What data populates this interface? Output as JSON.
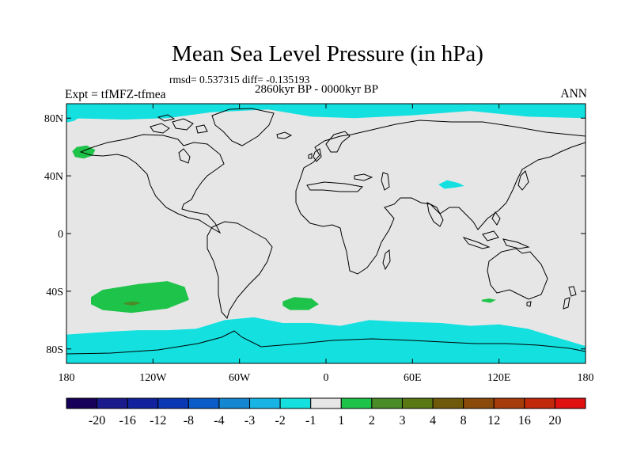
{
  "chart_data": {
    "type": "heatmap",
    "title": "Mean Sea Level Pressure (in hPa)",
    "stats": "rmsd= 0.537315 diff= -0.135193",
    "period": "2860kyr BP - 0000kyr BP",
    "experiment": "Expt = tfMFZ-tfmea",
    "season": "ANN",
    "x_ticks": [
      "180",
      "120W",
      "60W",
      "0",
      "60E",
      "120E",
      "180"
    ],
    "y_ticks": [
      "80N",
      "40N",
      "0",
      "40S",
      "80S"
    ],
    "xlim": [
      -180,
      180
    ],
    "ylim": [
      -90,
      90
    ],
    "colorbar": {
      "colors": [
        "#16005a",
        "#1a1a8c",
        "#10229e",
        "#0a38b4",
        "#0a5cc8",
        "#1487d2",
        "#18b4e6",
        "#14e0e0",
        "#e6e6e6",
        "#1ec34a",
        "#4a8c28",
        "#5a7814",
        "#6e5a0a",
        "#8a4a0a",
        "#a63c0a",
        "#c2280a",
        "#e01010"
      ],
      "labels": [
        "-20",
        "-16",
        "-12",
        "-8",
        "-4",
        "-3",
        "-2",
        "-1",
        "1",
        "2",
        "3",
        "4",
        "8",
        "12",
        "16",
        "20"
      ]
    },
    "regions": [
      {
        "name": "arctic-negative",
        "level": "-2 to -1",
        "color": "#14e0e0",
        "points": [
          [
            -180,
            90
          ],
          [
            180,
            90
          ],
          [
            180,
            80
          ],
          [
            140,
            81
          ],
          [
            100,
            85
          ],
          [
            60,
            82
          ],
          [
            20,
            80
          ],
          [
            -10,
            81
          ],
          [
            -40,
            86
          ],
          [
            -80,
            84
          ],
          [
            -110,
            80
          ],
          [
            -140,
            79
          ],
          [
            -180,
            80
          ]
        ]
      },
      {
        "name": "arctic-negative-tail",
        "level": "-2 to -1",
        "color": "#14e0e0",
        "points": [
          [
            -170,
            81
          ],
          [
            -175,
            78
          ],
          [
            -180,
            77
          ],
          [
            -180,
            81
          ]
        ]
      },
      {
        "name": "antarctic-negative",
        "level": "-2 to -1",
        "color": "#14e0e0",
        "points": [
          [
            -180,
            -90
          ],
          [
            180,
            -90
          ],
          [
            180,
            -78
          ],
          [
            160,
            -72
          ],
          [
            140,
            -66
          ],
          [
            120,
            -63
          ],
          [
            100,
            -64
          ],
          [
            80,
            -62
          ],
          [
            50,
            -61
          ],
          [
            30,
            -60
          ],
          [
            10,
            -64
          ],
          [
            -10,
            -62
          ],
          [
            -30,
            -62
          ],
          [
            -50,
            -58
          ],
          [
            -70,
            -60
          ],
          [
            -90,
            -66
          ],
          [
            -110,
            -67
          ],
          [
            -130,
            -67
          ],
          [
            -150,
            -68
          ],
          [
            -180,
            -70
          ]
        ]
      },
      {
        "name": "north-pacific-positive",
        "level": "1 to 2",
        "color": "#1ec34a",
        "points": [
          [
            -176,
            57
          ],
          [
            -173,
            60
          ],
          [
            -166,
            61
          ],
          [
            -160,
            58
          ],
          [
            -162,
            54
          ],
          [
            -168,
            52
          ],
          [
            -174,
            53
          ]
        ]
      },
      {
        "name": "south-pacific-positive",
        "level": "1 to 2",
        "color": "#1ec34a",
        "points": [
          [
            -163,
            -44
          ],
          [
            -155,
            -39
          ],
          [
            -130,
            -35
          ],
          [
            -110,
            -33
          ],
          [
            -98,
            -37
          ],
          [
            -95,
            -46
          ],
          [
            -110,
            -52
          ],
          [
            -135,
            -55
          ],
          [
            -155,
            -53
          ],
          [
            -163,
            -49
          ]
        ]
      },
      {
        "name": "south-pacific-core",
        "level": "2 to 3",
        "color": "#4a8c28",
        "points": [
          [
            -140,
            -48
          ],
          [
            -134,
            -47
          ],
          [
            -128,
            -48
          ],
          [
            -134,
            -50
          ],
          [
            -140,
            -49
          ]
        ]
      },
      {
        "name": "south-atlantic-positive",
        "level": "1 to 2",
        "color": "#1ec34a",
        "points": [
          [
            -30,
            -47
          ],
          [
            -22,
            -44
          ],
          [
            -10,
            -45
          ],
          [
            -5,
            -49
          ],
          [
            -12,
            -53
          ],
          [
            -25,
            -53
          ],
          [
            -30,
            -50
          ]
        ]
      },
      {
        "name": "indian-ocean-positive",
        "level": "1 to 2",
        "color": "#1ec34a",
        "points": [
          [
            108,
            -46
          ],
          [
            113,
            -45
          ],
          [
            118,
            -46
          ],
          [
            114,
            -48
          ],
          [
            108,
            -47
          ]
        ]
      },
      {
        "name": "tibet-negative",
        "level": "-2 to -1",
        "color": "#14e0e0",
        "points": [
          [
            78,
            34
          ],
          [
            84,
            37
          ],
          [
            92,
            35
          ],
          [
            96,
            33
          ],
          [
            90,
            32
          ],
          [
            82,
            31
          ]
        ]
      }
    ]
  }
}
